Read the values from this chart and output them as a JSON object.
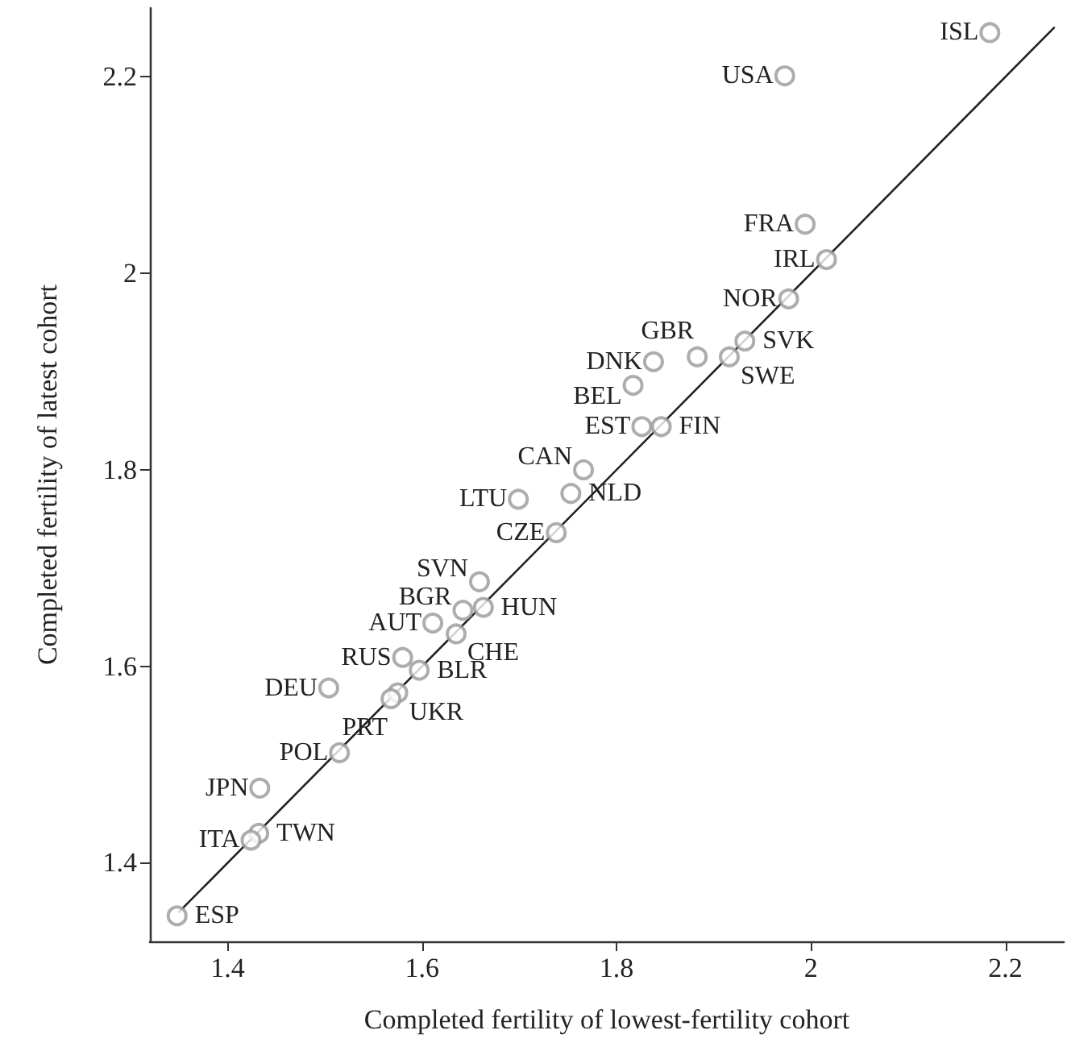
{
  "chart_data": {
    "type": "scatter",
    "xlabel": "Completed fertility of lowest-fertility cohort",
    "ylabel": "Completed fertility of latest cohort",
    "xlim": [
      1.32,
      2.26
    ],
    "ylim": [
      1.32,
      2.27
    ],
    "xticks": [
      1.4,
      1.6,
      1.8,
      2,
      2.2
    ],
    "yticks": [
      1.4,
      1.6,
      1.8,
      2,
      2.2
    ],
    "grid": false,
    "marker": "circle",
    "series": [
      {
        "color": "#999999",
        "x": [
          2.184,
          1.973,
          1.994,
          2.016,
          1.977,
          1.932,
          1.916,
          1.883,
          1.838,
          1.817,
          1.826,
          1.846,
          1.766,
          1.699,
          1.753,
          1.738,
          1.659,
          1.642,
          1.663,
          1.611,
          1.635,
          1.58,
          1.597,
          1.504,
          1.575,
          1.568,
          1.515,
          1.433,
          1.432,
          1.424,
          1.348
        ],
        "values": [
          2.245,
          2.201,
          2.05,
          2.014,
          1.974,
          1.931,
          1.915,
          1.915,
          1.91,
          1.886,
          1.844,
          1.844,
          1.8,
          1.77,
          1.776,
          1.736,
          1.686,
          1.657,
          1.66,
          1.644,
          1.633,
          1.609,
          1.596,
          1.578,
          1.573,
          1.567,
          1.512,
          1.476,
          1.43,
          1.423,
          1.346
        ]
      },
      {
        "type": "line",
        "color": "#222222",
        "marker": "none",
        "line_style": "solid",
        "x": [
          1.35,
          2.25
        ],
        "values": [
          1.35,
          2.25
        ]
      }
    ],
    "annotations": [
      {
        "text": "ISL",
        "x": 2.184,
        "y": 2.245
      },
      {
        "text": "USA",
        "x": 1.973,
        "y": 2.201
      },
      {
        "text": "FRA",
        "x": 1.994,
        "y": 2.05
      },
      {
        "text": "IRL",
        "x": 2.016,
        "y": 2.014
      },
      {
        "text": "NOR",
        "x": 1.977,
        "y": 1.974
      },
      {
        "text": "SVK",
        "x": 1.932,
        "y": 1.931
      },
      {
        "text": "SWE",
        "x": 1.916,
        "y": 1.915
      },
      {
        "text": "GBR",
        "x": 1.883,
        "y": 1.915
      },
      {
        "text": "DNK",
        "x": 1.838,
        "y": 1.91
      },
      {
        "text": "BEL",
        "x": 1.817,
        "y": 1.886
      },
      {
        "text": "EST",
        "x": 1.826,
        "y": 1.844
      },
      {
        "text": "FIN",
        "x": 1.846,
        "y": 1.844
      },
      {
        "text": "CAN",
        "x": 1.766,
        "y": 1.8
      },
      {
        "text": "LTU",
        "x": 1.699,
        "y": 1.77
      },
      {
        "text": "NLD",
        "x": 1.753,
        "y": 1.776
      },
      {
        "text": "CZE",
        "x": 1.738,
        "y": 1.736
      },
      {
        "text": "SVN",
        "x": 1.659,
        "y": 1.686
      },
      {
        "text": "BGR",
        "x": 1.642,
        "y": 1.657
      },
      {
        "text": "HUN",
        "x": 1.663,
        "y": 1.66
      },
      {
        "text": "AUT",
        "x": 1.611,
        "y": 1.644
      },
      {
        "text": "CHE",
        "x": 1.635,
        "y": 1.633
      },
      {
        "text": "RUS",
        "x": 1.58,
        "y": 1.609
      },
      {
        "text": "BLR",
        "x": 1.597,
        "y": 1.596
      },
      {
        "text": "DEU",
        "x": 1.504,
        "y": 1.578
      },
      {
        "text": "UKR",
        "x": 1.575,
        "y": 1.573
      },
      {
        "text": "PRT",
        "x": 1.568,
        "y": 1.567
      },
      {
        "text": "POL",
        "x": 1.515,
        "y": 1.512
      },
      {
        "text": "JPN",
        "x": 1.433,
        "y": 1.476
      },
      {
        "text": "TWN",
        "x": 1.432,
        "y": 1.43
      },
      {
        "text": "ITA",
        "x": 1.424,
        "y": 1.423
      },
      {
        "text": "ESP",
        "x": 1.348,
        "y": 1.346
      }
    ]
  }
}
